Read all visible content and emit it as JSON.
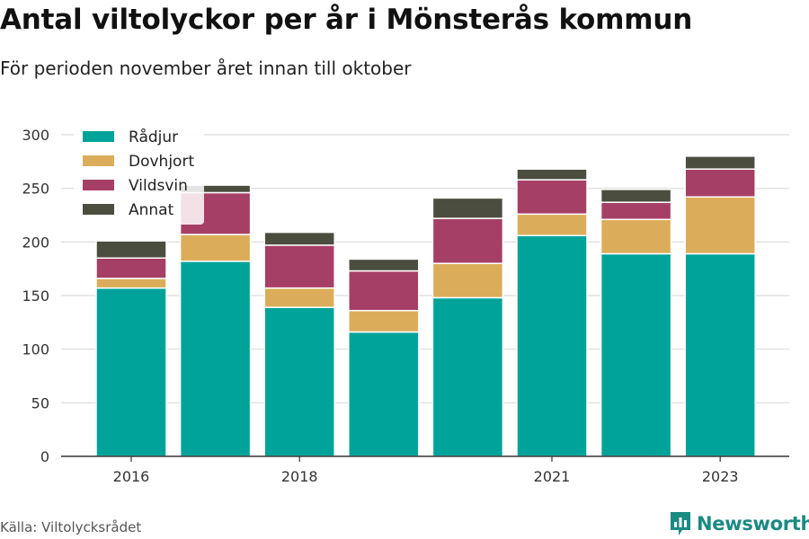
{
  "title": "Antal viltolyckor per år i Mönsterås kommun",
  "subtitle": "För perioden november året innan till oktober",
  "source": "Källa: Viltolycksrådet",
  "brand": {
    "name": "Newsworthy",
    "icon": "newsworthy-logo-icon",
    "color": "#1a8a83"
  },
  "chart_data": {
    "type": "bar",
    "stacked": true,
    "categories": [
      "2016",
      "2017",
      "2018",
      "2019",
      "2020",
      "2021",
      "2022",
      "2023"
    ],
    "x_tick_labels": [
      "2016",
      "",
      "2018",
      "",
      "",
      "2021",
      "",
      "2023"
    ],
    "series": [
      {
        "name": "Rådjur",
        "color": "#00a39a",
        "values": [
          157,
          182,
          139,
          116,
          148,
          206,
          189,
          189
        ]
      },
      {
        "name": "Dovhjort",
        "color": "#dbad5a",
        "values": [
          9,
          25,
          18,
          20,
          32,
          20,
          32,
          53
        ]
      },
      {
        "name": "Vildsvin",
        "color": "#a63f65",
        "values": [
          19,
          39,
          40,
          37,
          42,
          32,
          16,
          26
        ]
      },
      {
        "name": "Annat",
        "color": "#4b4d3f",
        "values": [
          16,
          7,
          12,
          11,
          19,
          10,
          12,
          12
        ]
      }
    ],
    "ylim": [
      0,
      300
    ],
    "yticks": [
      "0",
      "50",
      "100",
      "150",
      "200",
      "250",
      "300"
    ],
    "grid": true,
    "legend_position": "top-left"
  }
}
